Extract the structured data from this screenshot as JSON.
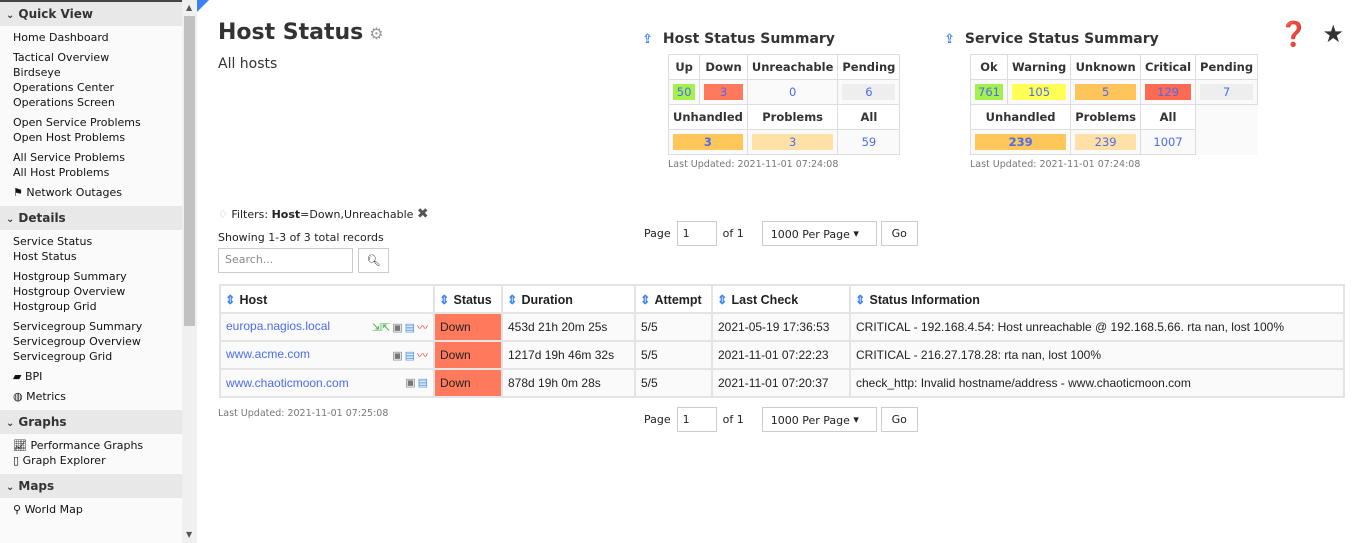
{
  "sidebar": {
    "sections": [
      {
        "title": "Quick View",
        "groups": [
          [
            "Home Dashboard"
          ],
          [
            "Tactical Overview",
            "Birdseye",
            "Operations Center",
            "Operations Screen"
          ],
          [
            "Open Service Problems",
            "Open Host Problems"
          ],
          [
            "All Service Problems",
            "All Host Problems"
          ],
          [
            "Network Outages"
          ]
        ]
      },
      {
        "title": "Details",
        "groups": [
          [
            "Service Status",
            "Host Status"
          ],
          [
            "Hostgroup Summary",
            "Hostgroup Overview",
            "Hostgroup Grid"
          ],
          [
            "Servicegroup Summary",
            "Servicegroup Overview",
            "Servicegroup Grid"
          ],
          [
            "BPI"
          ],
          [
            "Metrics"
          ]
        ]
      },
      {
        "title": "Graphs",
        "groups": [
          [
            "Performance Graphs",
            "Graph Explorer"
          ]
        ]
      },
      {
        "title": "Maps",
        "groups": [
          [
            "World Map"
          ]
        ]
      }
    ]
  },
  "page": {
    "title": "Host Status",
    "subtitle": "All hosts"
  },
  "host_summary": {
    "title": "Host Status Summary",
    "headers": [
      "Up",
      "Down",
      "Unreachable",
      "Pending"
    ],
    "values": [
      "50",
      "3",
      "0",
      "6"
    ],
    "headers2": [
      "Unhandled",
      "Problems",
      "All"
    ],
    "values2": [
      "3",
      "3",
      "59"
    ],
    "last_updated": "Last Updated: 2021-11-01 07:24:08"
  },
  "service_summary": {
    "title": "Service Status Summary",
    "headers": [
      "Ok",
      "Warning",
      "Unknown",
      "Critical",
      "Pending"
    ],
    "values": [
      "761",
      "105",
      "5",
      "129",
      "7"
    ],
    "headers2": [
      "Unhandled",
      "Problems",
      "All"
    ],
    "values2": [
      "239",
      "239",
      "1007"
    ],
    "last_updated": "Last Updated: 2021-11-01 07:24:08"
  },
  "colors": {
    "up": "#a6f04d",
    "down": "#ff7a5c",
    "pending": "#eeeeee",
    "warning": "#ffff55",
    "unknown": "#ffc45a",
    "critical": "#ff6a52",
    "unhandled": "#ffc65a",
    "problems": "#ffe1a8"
  },
  "filters": {
    "label": "Filters:",
    "key": "Host",
    "value": "=Down,Unreachable"
  },
  "showing": "Showing 1-3 of 3 total records",
  "search": {
    "placeholder": "Search..."
  },
  "pager": {
    "page_label": "Page",
    "page": "1",
    "of": "of 1",
    "per_page": "1000 Per Page",
    "go": "Go"
  },
  "table": {
    "headers": [
      "Host",
      "Status",
      "Duration",
      "Attempt",
      "Last Check",
      "Status Information"
    ],
    "rows": [
      [
        "europa.nagios.local",
        "Down",
        "453d 21h 20m 25s",
        "5/5",
        "2021-05-19 17:36:53",
        "CRITICAL - 192.168.4.54: Host unreachable @ 192.168.5.66. rta nan, lost 100%"
      ],
      [
        "www.acme.com",
        "Down",
        "1217d 19h 46m 32s",
        "5/5",
        "2021-11-01 07:22:23",
        "CRITICAL - 216.27.178.28: rta nan, lost 100%"
      ],
      [
        "www.chaoticmoon.com",
        "Down",
        "878d 19h 0m 28s",
        "5/5",
        "2021-11-01 07:20:37",
        "check_http: Invalid hostname/address - www.chaoticmoon.com"
      ]
    ]
  },
  "last_updated": "Last Updated: 2021-11-01 07:25:08"
}
